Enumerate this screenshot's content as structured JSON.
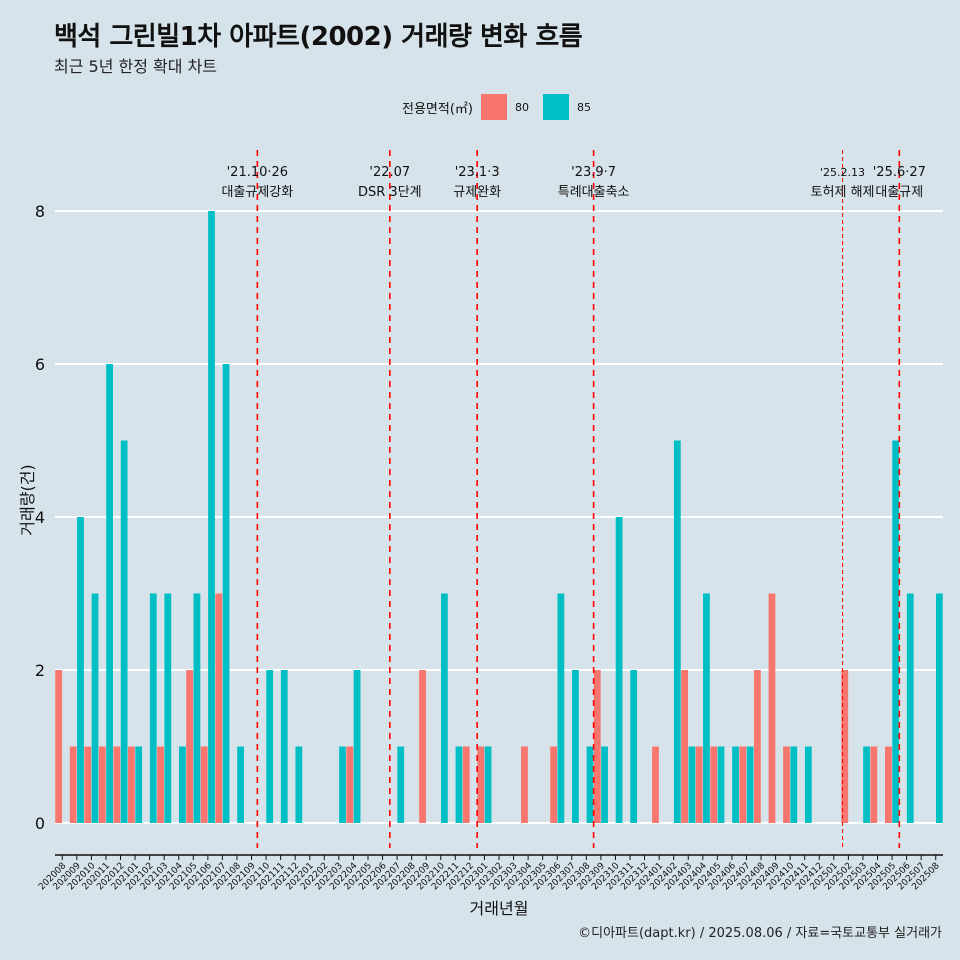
{
  "title": "백석 그린빌1차 아파트(2002) 거래량 변화 흐름",
  "subtitle": "최근 5년 한정 확대 차트",
  "caption": "©디아파트(dapt.kr) / 2025.08.06 / 자료=국토교통부 실거래가",
  "colors": {
    "background": "#d6e3ea",
    "s80": "#f8766d",
    "s85": "#00bfc4",
    "event_line": "#ff0000",
    "grid": "#ffffff"
  },
  "chart_data": {
    "type": "bar",
    "xlabel": "거래년월",
    "ylabel": "거래량(건)",
    "ylim": [
      0,
      8
    ],
    "yticks": [
      0,
      2,
      4,
      6,
      8
    ],
    "legend": {
      "title": "전용면적(㎡)",
      "position": "top"
    },
    "categories": [
      "202008",
      "202009",
      "202010",
      "202011",
      "202012",
      "202101",
      "202102",
      "202103",
      "202104",
      "202105",
      "202106",
      "202107",
      "202108",
      "202109",
      "202110",
      "202111",
      "202112",
      "202201",
      "202202",
      "202203",
      "202204",
      "202205",
      "202206",
      "202207",
      "202208",
      "202209",
      "202210",
      "202211",
      "202212",
      "202301",
      "202302",
      "202303",
      "202304",
      "202305",
      "202306",
      "202307",
      "202308",
      "202309",
      "202310",
      "202311",
      "202312",
      "202401",
      "202402",
      "202403",
      "202404",
      "202405",
      "202406",
      "202407",
      "202408",
      "202409",
      "202410",
      "202411",
      "202412",
      "202501",
      "202502",
      "202503",
      "202504",
      "202505",
      "202506",
      "202507",
      "202508"
    ],
    "series": [
      {
        "name": "80",
        "values": [
          2,
          1,
          1,
          1,
          1,
          1,
          0,
          1,
          0,
          2,
          1,
          3,
          0,
          0,
          0,
          0,
          0,
          0,
          0,
          0,
          1,
          0,
          0,
          0,
          0,
          2,
          0,
          0,
          1,
          1,
          0,
          0,
          1,
          0,
          1,
          0,
          0,
          2,
          0,
          0,
          0,
          1,
          0,
          2,
          1,
          1,
          0,
          1,
          2,
          3,
          1,
          0,
          0,
          0,
          2,
          0,
          1,
          1,
          0,
          0,
          0
        ]
      },
      {
        "name": "85",
        "values": [
          0,
          4,
          3,
          6,
          5,
          1,
          3,
          3,
          1,
          3,
          8,
          6,
          1,
          0,
          2,
          2,
          1,
          0,
          0,
          1,
          2,
          0,
          0,
          1,
          0,
          0,
          3,
          1,
          0,
          1,
          0,
          0,
          0,
          0,
          3,
          2,
          1,
          1,
          4,
          2,
          0,
          0,
          5,
          1,
          3,
          1,
          1,
          1,
          0,
          0,
          1,
          1,
          0,
          0,
          0,
          1,
          0,
          5,
          3,
          0,
          3
        ]
      }
    ],
    "events": [
      {
        "date": "'21.10·26",
        "label": "대출규제강화",
        "pos": 13.9,
        "style": "dashed"
      },
      {
        "date": "'22.07",
        "label": "DSR 3단계",
        "pos": 23,
        "style": "dashed"
      },
      {
        "date": "'23.1·3",
        "label": "규제완화",
        "pos": 29,
        "style": "dashed"
      },
      {
        "date": "'23.9·7",
        "label": "특례대출축소",
        "pos": 37,
        "style": "dashed"
      },
      {
        "date": "'25.2.13",
        "label": "토허제 해제",
        "pos": 54.1,
        "style": "thin"
      },
      {
        "date": "'25.6·27",
        "label": "대출규제",
        "pos": 58,
        "style": "dashed"
      }
    ]
  }
}
